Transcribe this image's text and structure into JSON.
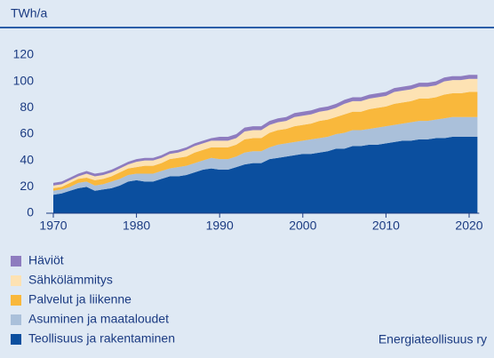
{
  "chart_data": {
    "type": "stacked_area",
    "y_label": "TWh/a",
    "source": "Energiateollisuus ry",
    "x": [
      1970,
      1971,
      1972,
      1973,
      1974,
      1975,
      1976,
      1977,
      1978,
      1979,
      1980,
      1981,
      1982,
      1983,
      1984,
      1985,
      1986,
      1987,
      1988,
      1989,
      1990,
      1991,
      1992,
      1993,
      1994,
      1995,
      1996,
      1997,
      1998,
      1999,
      2000,
      2001,
      2002,
      2003,
      2004,
      2005,
      2006,
      2007,
      2008,
      2009,
      2010,
      2011,
      2012,
      2013,
      2014,
      2015,
      2016,
      2017,
      2018,
      2019,
      2020,
      2021
    ],
    "xlim": [
      1970,
      2020
    ],
    "xticks": [
      1970,
      1980,
      1990,
      2000,
      2010,
      2020
    ],
    "ylim": [
      0,
      120
    ],
    "yticks": [
      0,
      20,
      40,
      60,
      80,
      100,
      120
    ],
    "series": [
      {
        "name": "Teollisuus ja rakentaminen",
        "color": "#0b4f9f",
        "values": [
          14,
          15,
          17,
          19,
          20,
          17,
          18,
          19,
          21,
          24,
          25,
          24,
          24,
          26,
          28,
          28,
          29,
          31,
          33,
          34,
          33,
          33,
          35,
          37,
          38,
          38,
          41,
          42,
          43,
          44,
          45,
          45,
          46,
          47,
          49,
          49,
          51,
          51,
          52,
          52,
          53,
          54,
          55,
          55,
          56,
          56,
          57,
          57,
          58,
          58,
          58,
          58
        ]
      },
      {
        "name": "Asuminen ja maataloudet",
        "color": "#aac0da",
        "values": [
          3,
          3,
          3,
          4,
          4,
          4,
          4,
          5,
          5,
          5,
          5,
          6,
          6,
          6,
          6,
          7,
          7,
          7,
          7,
          8,
          8,
          8,
          8,
          9,
          9,
          9,
          9,
          10,
          10,
          10,
          10,
          11,
          11,
          11,
          11,
          12,
          12,
          12,
          12,
          13,
          13,
          13,
          13,
          14,
          14,
          14,
          14,
          15,
          15,
          15,
          15,
          15
        ]
      },
      {
        "name": "Palvelut ja liikenne",
        "color": "#f9b83c",
        "values": [
          2,
          2,
          3,
          3,
          3,
          4,
          4,
          4,
          5,
          5,
          5,
          6,
          6,
          6,
          7,
          7,
          7,
          8,
          8,
          8,
          9,
          9,
          9,
          10,
          10,
          10,
          11,
          11,
          11,
          12,
          12,
          12,
          13,
          13,
          13,
          14,
          14,
          14,
          15,
          15,
          15,
          16,
          16,
          16,
          17,
          17,
          17,
          18,
          18,
          18,
          19,
          19
        ]
      },
      {
        "name": "Sähkölämmitys",
        "color": "#fde2b3",
        "values": [
          2,
          2,
          2,
          2,
          3,
          3,
          3,
          3,
          3,
          3,
          4,
          4,
          4,
          4,
          4,
          4,
          5,
          5,
          5,
          5,
          5,
          5,
          5,
          6,
          6,
          6,
          6,
          6,
          6,
          7,
          7,
          7,
          7,
          7,
          7,
          8,
          8,
          8,
          8,
          8,
          8,
          9,
          9,
          9,
          9,
          9,
          9,
          10,
          10,
          10,
          10,
          10
        ]
      },
      {
        "name": "Häviöt",
        "color": "#8e7cbf",
        "values": [
          2,
          2,
          2,
          2,
          2,
          2,
          2,
          2,
          2,
          2,
          2,
          2,
          2,
          2,
          2,
          2,
          2,
          2,
          2,
          2,
          3,
          3,
          3,
          3,
          3,
          3,
          3,
          3,
          3,
          3,
          3,
          3,
          3,
          3,
          3,
          3,
          3,
          3,
          3,
          3,
          3,
          3,
          3,
          3,
          3,
          3,
          3,
          3,
          3,
          3,
          3,
          3
        ]
      }
    ]
  }
}
